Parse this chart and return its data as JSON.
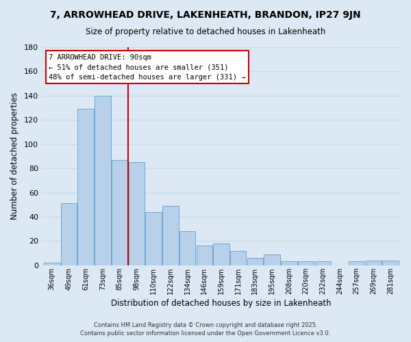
{
  "title": "7, ARROWHEAD DRIVE, LAKENHEATH, BRANDON, IP27 9JN",
  "subtitle": "Size of property relative to detached houses in Lakenheath",
  "xlabel": "Distribution of detached houses by size in Lakenheath",
  "ylabel": "Number of detached properties",
  "categories": [
    "36sqm",
    "49sqm",
    "61sqm",
    "73sqm",
    "85sqm",
    "98sqm",
    "110sqm",
    "122sqm",
    "134sqm",
    "146sqm",
    "159sqm",
    "171sqm",
    "183sqm",
    "195sqm",
    "208sqm",
    "220sqm",
    "232sqm",
    "244sqm",
    "257sqm",
    "269sqm",
    "281sqm"
  ],
  "values": [
    2,
    51,
    129,
    140,
    87,
    85,
    44,
    49,
    28,
    16,
    18,
    12,
    6,
    9,
    3,
    3,
    3,
    0,
    3,
    4,
    4
  ],
  "bar_color": "#b8d0ea",
  "bar_edge_color": "#6fa8d4",
  "vline_x": 4.5,
  "vline_color": "#cc0000",
  "annotation_title": "7 ARROWHEAD DRIVE: 90sqm",
  "annotation_line1": "← 51% of detached houses are smaller (351)",
  "annotation_line2": "48% of semi-detached houses are larger (331) →",
  "annotation_box_facecolor": "#ffffff",
  "annotation_box_edgecolor": "#cc0000",
  "ylim": [
    0,
    180
  ],
  "yticks": [
    0,
    20,
    40,
    60,
    80,
    100,
    120,
    140,
    160,
    180
  ],
  "grid_color": "#c8d8e8",
  "background_color": "#dce8f4",
  "footer1": "Contains HM Land Registry data © Crown copyright and database right 2025.",
  "footer2": "Contains public sector information licensed under the Open Government Licence v3.0."
}
